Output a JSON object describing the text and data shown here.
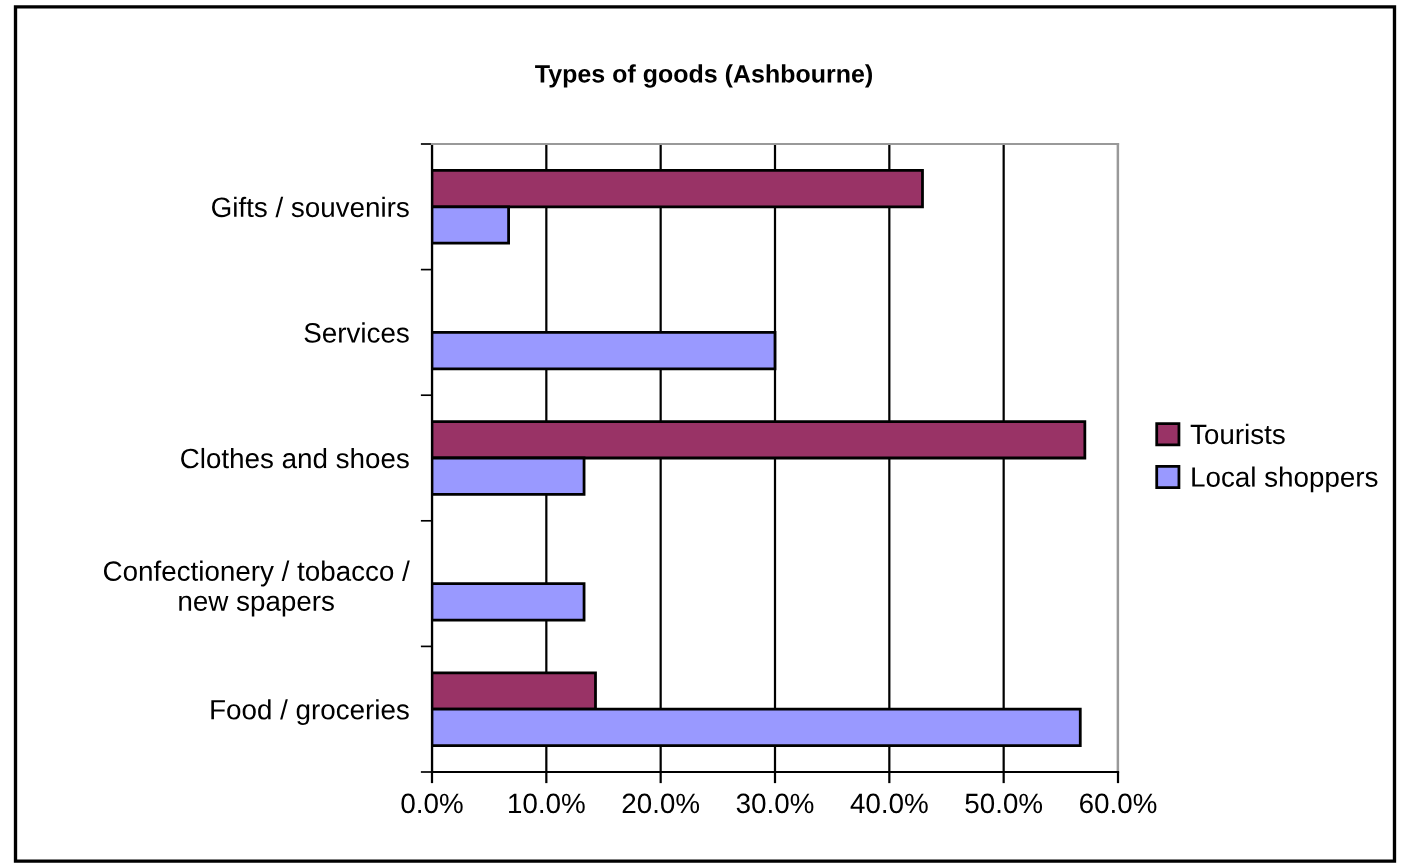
{
  "chart_data": {
    "type": "bar",
    "orientation": "horizontal",
    "title": "Types of goods (Ashbourne)",
    "categories": [
      "Gifts / souvenirs",
      "Services",
      "Clothes and shoes",
      "Confectionery / tobacco /\nnew spapers",
      "Food / groceries"
    ],
    "series": [
      {
        "name": "Tourists",
        "color": "#993366",
        "values": [
          42.9,
          null,
          57.1,
          null,
          14.3
        ]
      },
      {
        "name": "Local shoppers",
        "color": "#9999ff",
        "values": [
          6.7,
          30.0,
          13.3,
          13.3,
          56.7
        ]
      }
    ],
    "xlim": [
      0,
      60
    ],
    "xticks": [
      {
        "value": 0,
        "label": "0.0%"
      },
      {
        "value": 10,
        "label": "10.0%"
      },
      {
        "value": 20,
        "label": "20.0%"
      },
      {
        "value": 30,
        "label": "30.0%"
      },
      {
        "value": 40,
        "label": "40.0%"
      },
      {
        "value": 50,
        "label": "50.0%"
      },
      {
        "value": 60,
        "label": "60.0%"
      }
    ],
    "grid": "x",
    "legend": "right"
  }
}
